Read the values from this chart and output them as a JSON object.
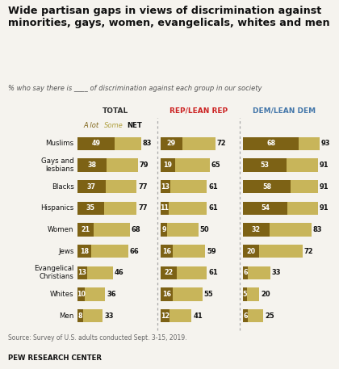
{
  "title": "Wide partisan gaps in views of discrimination against\nminorities, gays, women, evangelicals, whites and men",
  "subtitle": "% who say there is ____ of discrimination against each group in our society",
  "source": "Source: Survey of U.S. adults conducted Sept. 3-15, 2019.",
  "branding": "PEW RESEARCH CENTER",
  "categories": [
    "Muslims",
    "Gays and\nlesbians",
    "Blacks",
    "Hispanics",
    "Women",
    "Jews",
    "Evangelical\nChristians",
    "Whites",
    "Men"
  ],
  "col_headers": [
    "TOTAL",
    "REP/LEAN REP",
    "DEM/LEAN DEM"
  ],
  "col_header_colors": [
    "#333333",
    "#cc2222",
    "#4477aa"
  ],
  "color_alot": "#7d6215",
  "color_some": "#c8b55a",
  "total_alot": [
    49,
    38,
    37,
    35,
    21,
    18,
    13,
    10,
    8
  ],
  "total_net": [
    83,
    79,
    77,
    77,
    68,
    66,
    46,
    36,
    33
  ],
  "rep_alot": [
    29,
    19,
    13,
    11,
    9,
    16,
    22,
    16,
    12
  ],
  "rep_net": [
    72,
    65,
    61,
    61,
    50,
    59,
    61,
    55,
    41
  ],
  "dem_alot": [
    68,
    53,
    58,
    54,
    32,
    20,
    6,
    5,
    6
  ],
  "dem_net": [
    93,
    91,
    91,
    91,
    83,
    72,
    33,
    20,
    25
  ],
  "bg_color": "#f5f3ee",
  "bar_height": 0.62
}
